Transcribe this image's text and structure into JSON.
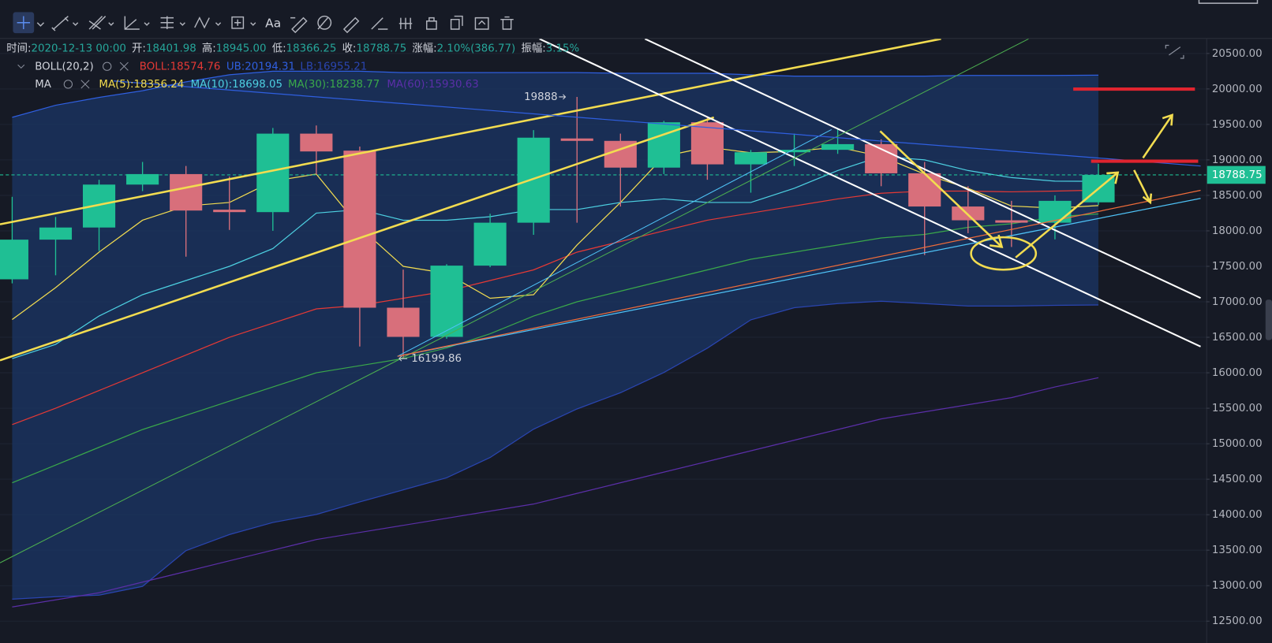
{
  "toolbar": {
    "font_button": "Aa"
  },
  "chart_data": {
    "type": "candlestick",
    "info": [
      {
        "label": "时间:",
        "value": "2020-12-13 00:00"
      },
      {
        "label": "开:",
        "value": "18401.98"
      },
      {
        "label": "高:",
        "value": "18945.00"
      },
      {
        "label": "低:",
        "value": "18366.25"
      },
      {
        "label": "收:",
        "value": "18788.75"
      },
      {
        "label": "涨幅:",
        "value": "2.10%(386.77)"
      },
      {
        "label": "振幅:",
        "value": "3.15%"
      }
    ],
    "info_label_color": "#d1d4dc",
    "info_value_color": "#26a69a",
    "up_color": "#1fbf94",
    "down_color": "#d86f7b",
    "open": [
      17317,
      17876,
      18047,
      18652,
      18800,
      18298,
      18264,
      19370,
      19130,
      16917,
      16506,
      17510,
      18115,
      19302,
      19268,
      18891,
      19530,
      18937,
      19108,
      19142,
      19222,
      18811,
      18343,
      18149,
      18115,
      18401.98
    ],
    "high": [
      18480,
      18195,
      18720,
      18971,
      18914,
      18766,
      19450,
      19485,
      19188,
      17454,
      17530,
      18241,
      19420,
      19888,
      19370,
      19550,
      19600,
      19140,
      19370,
      19427,
      19290,
      18970,
      18629,
      18423,
      18500,
      18945
    ],
    "low": [
      17260,
      17374,
      17716,
      18560,
      17636,
      18013,
      18001,
      18800,
      16370,
      16199.86,
      16480,
      17488,
      17944,
      18115,
      18343,
      18800,
      18720,
      18538,
      18914,
      19085,
      18629,
      17659,
      17967,
      17773,
      17880,
      18366.25
    ],
    "close": [
      17876,
      18047,
      18652,
      18800,
      18286,
      18264,
      19370,
      19119,
      16917,
      16506,
      17510,
      18115,
      19313,
      19268,
      18891,
      19530,
      18937,
      19108,
      19142,
      19222,
      18811,
      18343,
      18149,
      18115,
      18423,
      18788.75
    ],
    "indicator_groups": [
      {
        "name": "BOLL(20,2)",
        "series": [
          {
            "name": "BOLL:18574.76",
            "color": "#e53935",
            "values": [
              15270,
              15500,
              15750,
              16000,
              16250,
              16500,
              16700,
              16900,
              16950,
              17050,
              17150,
              17300,
              17450,
              17700,
              17850,
              18000,
              18150,
              18250,
              18350,
              18450,
              18530,
              18560,
              18560,
              18550,
              18560,
              18574.76
            ]
          },
          {
            "name": "UB:20194.31",
            "color": "#2f5fe0",
            "values": [
              19600,
              19770,
              19880,
              19975,
              20100,
              20200,
              20250,
              20250,
              20250,
              20230,
              20230,
              20230,
              20230,
              20230,
              20220,
              20220,
              20220,
              20200,
              20180,
              20180,
              20180,
              20180,
              20190,
              20190,
              20190,
              20194.31
            ]
          },
          {
            "name": "LB:16955.21",
            "color": "#2a45b0",
            "values": [
              12810,
              12844,
              12866,
              12990,
              13493,
              13720,
              13890,
              14003,
              14180,
              14350,
              14520,
              14806,
              15205,
              15490,
              15719,
              16004,
              16347,
              16746,
              16917,
              16975,
              17009,
              16975,
              16940,
              16940,
              16950,
              16955.21
            ]
          }
        ]
      },
      {
        "name": "MA",
        "series": [
          {
            "name": "MA(5):18356.24",
            "color": "#f2dc50",
            "values": [
              16750,
              17200,
              17700,
              18150,
              18350,
              18400,
              18700,
              18800,
              18050,
              17500,
              17400,
              17050,
              17100,
              17800,
              18400,
              19050,
              19180,
              19100,
              19120,
              19180,
              19050,
              18800,
              18600,
              18350,
              18320,
              18356.24
            ]
          },
          {
            "name": "MA(10):18698.05",
            "color": "#4dd0e1",
            "values": [
              16200,
              16400,
              16800,
              17100,
              17300,
              17500,
              17750,
              18250,
              18300,
              18150,
              18150,
              18200,
              18300,
              18300,
              18400,
              18450,
              18400,
              18400,
              18600,
              18850,
              19050,
              19000,
              18850,
              18750,
              18700,
              18698.05
            ]
          },
          {
            "name": "MA(30):18238.77",
            "color": "#3aa84a",
            "values": [
              14450,
              14700,
              14950,
              15200,
              15400,
              15600,
              15800,
              16000,
              16100,
              16200,
              16350,
              16550,
              16800,
              17000,
              17150,
              17300,
              17450,
              17600,
              17700,
              17800,
              17900,
              17950,
              18050,
              18100,
              18200,
              18238.77
            ]
          },
          {
            "name": "MA(60):15930.63",
            "color": "#5b2fa8",
            "values": [
              12700,
              12800,
              12900,
              13050,
              13200,
              13350,
              13500,
              13650,
              13750,
              13850,
              13950,
              14050,
              14150,
              14300,
              14450,
              14600,
              14750,
              14900,
              15050,
              15200,
              15350,
              15450,
              15550,
              15650,
              15800,
              15930.63
            ]
          }
        ]
      }
    ],
    "band_color": "#1b3566",
    "last_price": 18788.75,
    "last_price_color": "#1fbf94",
    "ylim": [
      12000,
      20700
    ],
    "yticks": [
      {
        "value": 20500,
        "label": "20500.00"
      },
      {
        "value": 20000,
        "label": "20000.00"
      },
      {
        "value": 19500,
        "label": "19500.00"
      },
      {
        "value": 19000,
        "label": "19000.00"
      },
      {
        "value": 18500,
        "label": "18500.00"
      },
      {
        "value": 18000,
        "label": "18000.00"
      },
      {
        "value": 17500,
        "label": "17500.00"
      },
      {
        "value": 17000,
        "label": "17000.00"
      },
      {
        "value": 16500,
        "label": "16500.00"
      },
      {
        "value": 16000,
        "label": "16000.00"
      },
      {
        "value": 15500,
        "label": "15500.00"
      },
      {
        "value": 15000,
        "label": "15000.00"
      },
      {
        "value": 14500,
        "label": "14500.00"
      },
      {
        "value": 14000,
        "label": "14000.00"
      },
      {
        "value": 13500,
        "label": "13500.00"
      },
      {
        "value": 13000,
        "label": "13000.00"
      },
      {
        "value": 12500,
        "label": "12500.00"
      }
    ],
    "grid": true
  }
}
